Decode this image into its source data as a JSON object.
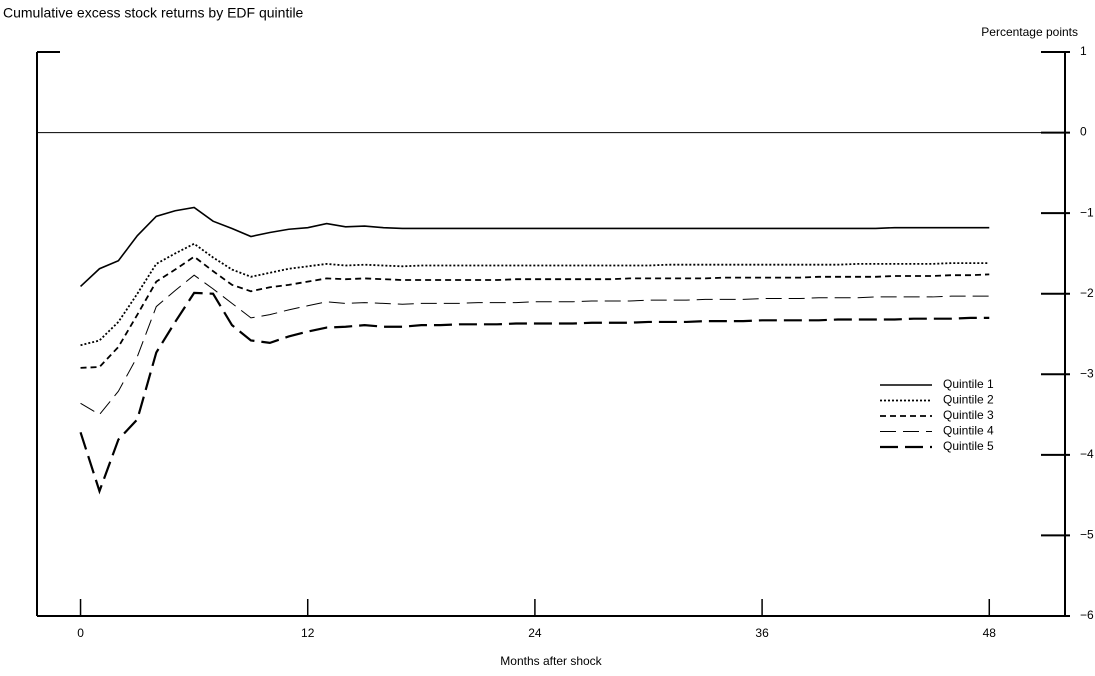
{
  "chart_data": {
    "type": "line",
    "title": "Cumulative excess stock returns by EDF quintile",
    "y_axis_label": "Percentage points",
    "x_axis_label": "Months after shock",
    "x": [
      0,
      1,
      2,
      3,
      4,
      5,
      6,
      7,
      8,
      9,
      10,
      11,
      12,
      13,
      14,
      15,
      16,
      17,
      18,
      19,
      20,
      21,
      22,
      23,
      24,
      25,
      26,
      27,
      28,
      29,
      30,
      31,
      32,
      33,
      34,
      35,
      36,
      37,
      38,
      39,
      40,
      41,
      42,
      43,
      44,
      45,
      46,
      47,
      48
    ],
    "xlim": [
      -2.3,
      52
    ],
    "xticks": [
      0,
      12,
      24,
      36,
      48
    ],
    "ylim": [
      -6,
      1
    ],
    "yticks": [
      {
        "value": 1,
        "label": "1"
      },
      {
        "value": 0,
        "label": "0"
      },
      {
        "value": -1,
        "label": "−1"
      },
      {
        "value": -2,
        "label": "−2"
      },
      {
        "value": -3,
        "label": "−3"
      },
      {
        "value": -4,
        "label": "−4"
      },
      {
        "value": -5,
        "label": "−5"
      },
      {
        "value": -6,
        "label": "−6"
      }
    ],
    "y_axis_side": "right",
    "zero_line": true,
    "legend_position": "center right",
    "series": [
      {
        "name": "Quintile 1",
        "color": "#000000",
        "dash": "solid",
        "values": [
          -1.91,
          -1.69,
          -1.59,
          -1.28,
          -1.04,
          -0.97,
          -0.93,
          -1.1,
          -1.19,
          -1.29,
          -1.24,
          -1.2,
          -1.18,
          -1.13,
          -1.17,
          -1.16,
          -1.18,
          -1.19,
          -1.19,
          -1.19,
          -1.19,
          -1.19,
          -1.19,
          -1.19,
          -1.19,
          -1.19,
          -1.19,
          -1.19,
          -1.19,
          -1.19,
          -1.19,
          -1.19,
          -1.19,
          -1.19,
          -1.19,
          -1.19,
          -1.19,
          -1.19,
          -1.19,
          -1.19,
          -1.19,
          -1.19,
          -1.19,
          -1.18,
          -1.18,
          -1.18,
          -1.18,
          -1.18,
          -1.18
        ]
      },
      {
        "name": "Quintile 2",
        "color": "#000000",
        "dash": "dotted",
        "values": [
          -2.64,
          -2.58,
          -2.35,
          -2.0,
          -1.63,
          -1.5,
          -1.38,
          -1.55,
          -1.7,
          -1.79,
          -1.74,
          -1.69,
          -1.66,
          -1.63,
          -1.65,
          -1.64,
          -1.65,
          -1.66,
          -1.65,
          -1.65,
          -1.65,
          -1.65,
          -1.65,
          -1.65,
          -1.65,
          -1.65,
          -1.65,
          -1.65,
          -1.65,
          -1.65,
          -1.65,
          -1.64,
          -1.64,
          -1.64,
          -1.64,
          -1.64,
          -1.64,
          -1.64,
          -1.64,
          -1.64,
          -1.64,
          -1.63,
          -1.63,
          -1.63,
          -1.63,
          -1.63,
          -1.62,
          -1.62,
          -1.62
        ]
      },
      {
        "name": "Quintile 3",
        "color": "#000000",
        "dash": "dashed",
        "values": [
          -2.92,
          -2.91,
          -2.66,
          -2.26,
          -1.85,
          -1.7,
          -1.54,
          -1.72,
          -1.89,
          -1.97,
          -1.92,
          -1.89,
          -1.85,
          -1.81,
          -1.82,
          -1.81,
          -1.82,
          -1.83,
          -1.83,
          -1.83,
          -1.83,
          -1.83,
          -1.83,
          -1.82,
          -1.82,
          -1.82,
          -1.82,
          -1.82,
          -1.82,
          -1.81,
          -1.81,
          -1.81,
          -1.81,
          -1.81,
          -1.8,
          -1.8,
          -1.8,
          -1.8,
          -1.8,
          -1.79,
          -1.79,
          -1.79,
          -1.79,
          -1.78,
          -1.78,
          -1.78,
          -1.77,
          -1.77,
          -1.76
        ]
      },
      {
        "name": "Quintile 4",
        "color": "#000000",
        "dash": "long-dashed",
        "values": [
          -3.36,
          -3.5,
          -3.21,
          -2.78,
          -2.16,
          -1.96,
          -1.77,
          -1.94,
          -2.12,
          -2.3,
          -2.26,
          -2.2,
          -2.15,
          -2.1,
          -2.12,
          -2.11,
          -2.12,
          -2.13,
          -2.12,
          -2.12,
          -2.12,
          -2.11,
          -2.11,
          -2.11,
          -2.1,
          -2.1,
          -2.1,
          -2.09,
          -2.09,
          -2.09,
          -2.08,
          -2.08,
          -2.08,
          -2.07,
          -2.07,
          -2.07,
          -2.06,
          -2.06,
          -2.06,
          -2.05,
          -2.05,
          -2.05,
          -2.04,
          -2.04,
          -2.04,
          -2.04,
          -2.03,
          -2.03,
          -2.03
        ]
      },
      {
        "name": "Quintile 5",
        "color": "#000000",
        "dash": "long-dashed-bold",
        "values": [
          -3.72,
          -4.45,
          -3.81,
          -3.56,
          -2.73,
          -2.35,
          -1.99,
          -2.0,
          -2.39,
          -2.58,
          -2.61,
          -2.53,
          -2.47,
          -2.42,
          -2.41,
          -2.39,
          -2.41,
          -2.41,
          -2.39,
          -2.39,
          -2.38,
          -2.38,
          -2.38,
          -2.37,
          -2.37,
          -2.37,
          -2.37,
          -2.36,
          -2.36,
          -2.36,
          -2.35,
          -2.35,
          -2.35,
          -2.34,
          -2.34,
          -2.34,
          -2.33,
          -2.33,
          -2.33,
          -2.33,
          -2.32,
          -2.32,
          -2.32,
          -2.32,
          -2.31,
          -2.31,
          -2.31,
          -2.3,
          -2.3
        ]
      }
    ]
  }
}
